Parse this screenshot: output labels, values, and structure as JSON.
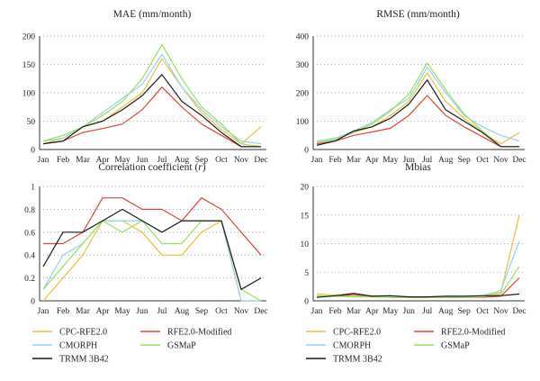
{
  "colors": {
    "CPC-RFE2.0": "#e8c23a",
    "RFE2.0-Modified": "#e0443e",
    "CMORPH": "#8fd3ea",
    "GSMaP": "#98e05a",
    "TRMM 3B42": "#1a1a1a"
  },
  "chart_data": [
    {
      "type": "line",
      "title": "MAE (mm/month)",
      "categories": [
        "Jan",
        "Feb",
        "Mar",
        "Apr",
        "May",
        "Jun",
        "Jul",
        "Aug",
        "Sep",
        "Oct",
        "Nov",
        "Dec"
      ],
      "ylim": [
        0,
        200
      ],
      "yticks": [
        "0",
        "50",
        "100",
        "150",
        "200"
      ],
      "grid": "horizontal-dotted",
      "series": [
        {
          "name": "CPC-RFE2.0",
          "values": [
            10,
            20,
            40,
            50,
            75,
            100,
            160,
            110,
            65,
            35,
            10,
            40
          ]
        },
        {
          "name": "RFE2.0-Modified",
          "values": [
            10,
            15,
            30,
            37,
            45,
            70,
            110,
            75,
            45,
            25,
            5,
            5
          ]
        },
        {
          "name": "CMORPH",
          "values": [
            15,
            20,
            40,
            65,
            90,
            115,
            168,
            110,
            70,
            40,
            15,
            10
          ]
        },
        {
          "name": "GSMaP",
          "values": [
            15,
            25,
            40,
            60,
            85,
            125,
            185,
            125,
            75,
            45,
            10,
            5
          ]
        },
        {
          "name": "TRMM 3B42",
          "values": [
            10,
            15,
            40,
            50,
            70,
            95,
            132,
            85,
            60,
            30,
            5,
            5
          ]
        }
      ]
    },
    {
      "type": "line",
      "title": "RMSE (mm/month)",
      "categories": [
        "Jan",
        "Feb",
        "Mar",
        "Apr",
        "May",
        "Jun",
        "Jul",
        "Aug",
        "Sep",
        "Oct",
        "Nov",
        "Dec"
      ],
      "ylim": [
        0,
        400
      ],
      "yticks": [
        "0",
        "100",
        "200",
        "300",
        "400"
      ],
      "grid": "horizontal-dotted",
      "series": [
        {
          "name": "CPC-RFE2.0",
          "values": [
            25,
            35,
            60,
            80,
            120,
            170,
            270,
            170,
            110,
            60,
            20,
            60
          ]
        },
        {
          "name": "RFE2.0-Modified",
          "values": [
            20,
            30,
            50,
            62,
            75,
            120,
            190,
            120,
            80,
            45,
            10,
            10
          ]
        },
        {
          "name": "CMORPH",
          "values": [
            30,
            40,
            65,
            95,
            140,
            180,
            290,
            200,
            120,
            80,
            50,
            30
          ]
        },
        {
          "name": "GSMaP",
          "values": [
            25,
            35,
            60,
            90,
            135,
            195,
            305,
            210,
            125,
            65,
            10,
            10
          ]
        },
        {
          "name": "TRMM 3B42",
          "values": [
            15,
            30,
            65,
            80,
            110,
            160,
            245,
            140,
            100,
            60,
            10,
            10
          ]
        }
      ]
    },
    {
      "type": "line",
      "title": "Correlation coefficient (",
      "title_var": "r",
      "title_end": ")",
      "categories": [
        "Jan",
        "Feb",
        "Mar",
        "Apr",
        "May",
        "Jun",
        "Jul",
        "Aug",
        "Sep",
        "Oct",
        "Nov",
        "Dec"
      ],
      "ylim": [
        0,
        1
      ],
      "yticks": [
        "0",
        "0.2",
        "0.4",
        "0.6",
        "0.8",
        "1"
      ],
      "grid": "horizontal-dotted",
      "series": [
        {
          "name": "CPC-RFE2.0",
          "values": [
            0.0,
            0.2,
            0.4,
            0.7,
            0.7,
            0.6,
            0.4,
            0.4,
            0.6,
            0.7,
            0.0,
            0.0
          ]
        },
        {
          "name": "RFE2.0-Modified",
          "values": [
            0.5,
            0.5,
            0.6,
            0.9,
            0.9,
            0.8,
            0.8,
            0.7,
            0.9,
            0.8,
            0.6,
            0.4
          ]
        },
        {
          "name": "CMORPH",
          "values": [
            0.1,
            0.4,
            0.5,
            0.7,
            0.7,
            0.7,
            0.6,
            0.7,
            0.7,
            0.7,
            0.0,
            0.0
          ]
        },
        {
          "name": "GSMaP",
          "values": [
            0.1,
            0.3,
            0.5,
            0.7,
            0.6,
            0.7,
            0.5,
            0.5,
            0.7,
            0.7,
            0.1,
            0.0
          ]
        },
        {
          "name": "TRMM 3B42",
          "values": [
            0.3,
            0.6,
            0.6,
            0.7,
            0.8,
            0.7,
            0.6,
            0.7,
            0.7,
            0.7,
            0.1,
            0.2
          ]
        }
      ]
    },
    {
      "type": "line",
      "title": "Mbias",
      "categories": [
        "Jan",
        "Feb",
        "Mar",
        "Apr",
        "May",
        "Jun",
        "Jul",
        "Aug",
        "Sep",
        "Oct",
        "Nov",
        "Dec"
      ],
      "ylim": [
        0,
        20
      ],
      "yticks": [
        "0",
        "5",
        "10",
        "15",
        "20"
      ],
      "grid": "horizontal-dotted",
      "series": [
        {
          "name": "CPC-RFE2.0",
          "values": [
            1.2,
            1.0,
            0.8,
            0.9,
            0.9,
            0.7,
            0.7,
            0.7,
            0.7,
            0.8,
            1.5,
            15.0
          ]
        },
        {
          "name": "RFE2.0-Modified",
          "values": [
            0.8,
            0.8,
            1.1,
            0.8,
            0.6,
            0.6,
            0.6,
            0.6,
            0.6,
            0.6,
            0.8,
            4.0
          ]
        },
        {
          "name": "CMORPH",
          "values": [
            0.7,
            0.8,
            0.7,
            0.8,
            0.7,
            0.6,
            0.7,
            0.7,
            0.7,
            0.9,
            1.8,
            10.5
          ]
        },
        {
          "name": "GSMaP",
          "values": [
            0.9,
            0.8,
            0.7,
            0.7,
            0.6,
            0.6,
            0.6,
            0.6,
            0.6,
            0.7,
            1.2,
            6.0
          ]
        },
        {
          "name": "TRMM 3B42",
          "values": [
            0.6,
            0.9,
            1.3,
            0.8,
            0.9,
            0.7,
            0.7,
            0.8,
            0.8,
            0.9,
            0.9,
            1.2
          ]
        }
      ]
    }
  ],
  "legend": {
    "placement": "below-bottom-panels",
    "entries": [
      "CPC-RFE2.0",
      "RFE2.0-Modified",
      "CMORPH",
      "GSMaP",
      "TRMM 3B42"
    ]
  }
}
